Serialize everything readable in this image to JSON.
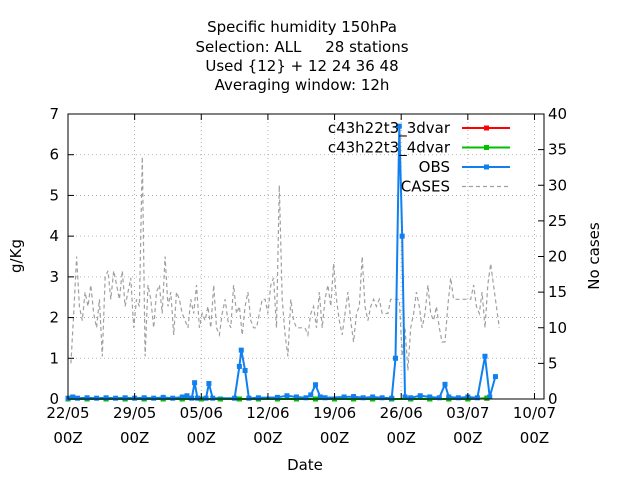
{
  "chart_data": {
    "type": "line",
    "title_lines": [
      "Specific humidity 150hPa",
      "Selection: ALL     28 stations",
      "Used {12} + 12 24 36 48",
      "Averaging window: 12h"
    ],
    "xlabel": "Date",
    "ylabel": "g/Kg",
    "y2label": "No cases",
    "xlim": [
      0,
      50
    ],
    "ylim": [
      0,
      7
    ],
    "y2lim": [
      0,
      40
    ],
    "yticks": [
      "0",
      "1",
      "2",
      "3",
      "4",
      "5",
      "6",
      "7"
    ],
    "y2ticks": [
      "0",
      "5",
      "10",
      "15",
      "20",
      "25",
      "30",
      "35",
      "40"
    ],
    "xticks": [
      {
        "day": 0,
        "date": "22/05",
        "hour": "00Z"
      },
      {
        "day": 7,
        "date": "29/05",
        "hour": "00Z"
      },
      {
        "day": 14,
        "date": "05/06",
        "hour": "00Z"
      },
      {
        "day": 21,
        "date": "12/06",
        "hour": "00Z"
      },
      {
        "day": 28,
        "date": "19/06",
        "hour": "00Z"
      },
      {
        "day": 35,
        "date": "26/06",
        "hour": "00Z"
      },
      {
        "day": 42,
        "date": "03/07",
        "hour": "00Z"
      },
      {
        "day": 49,
        "date": "10/07",
        "hour": "00Z"
      }
    ],
    "grid": true,
    "legend_position": "top-right",
    "series": [
      {
        "name": "c43h22t3_3dvar",
        "color": "#ff0000",
        "axis": "y1",
        "style": "line-points",
        "points": [
          [
            0,
            0
          ],
          [
            2,
            0
          ],
          [
            4,
            0
          ],
          [
            6,
            0
          ],
          [
            8,
            0
          ],
          [
            10,
            0
          ],
          [
            12,
            0
          ],
          [
            14,
            0
          ],
          [
            16,
            0
          ],
          [
            18,
            0
          ],
          [
            20,
            0
          ],
          [
            22,
            0
          ],
          [
            24,
            0
          ],
          [
            26,
            0
          ],
          [
            28,
            0
          ],
          [
            30,
            0
          ],
          [
            32,
            0
          ],
          [
            34,
            0
          ],
          [
            36,
            0
          ],
          [
            38,
            0
          ],
          [
            40,
            0
          ],
          [
            42,
            0
          ],
          [
            44,
            0.02
          ]
        ]
      },
      {
        "name": "c43h22t3_4dvar",
        "color": "#00c000",
        "axis": "y1",
        "style": "line-points",
        "points": [
          [
            0,
            0
          ],
          [
            2,
            0
          ],
          [
            4,
            0
          ],
          [
            6,
            0
          ],
          [
            8,
            0
          ],
          [
            10,
            0
          ],
          [
            12,
            0
          ],
          [
            14,
            0
          ],
          [
            16,
            0
          ],
          [
            18,
            0
          ],
          [
            20,
            0
          ],
          [
            22,
            0
          ],
          [
            24,
            0
          ],
          [
            26,
            0
          ],
          [
            28,
            0
          ],
          [
            30,
            0
          ],
          [
            32,
            0
          ],
          [
            34,
            0
          ],
          [
            36,
            0
          ],
          [
            38,
            0
          ],
          [
            40,
            0
          ],
          [
            42,
            0
          ],
          [
            44,
            0.02
          ]
        ]
      },
      {
        "name": "OBS",
        "color": "#1080f0",
        "axis": "y1",
        "style": "line-points",
        "points": [
          [
            0,
            0.02
          ],
          [
            0.5,
            0.05
          ],
          [
            1,
            0.02
          ],
          [
            2,
            0.03
          ],
          [
            3,
            0.02
          ],
          [
            4,
            0.03
          ],
          [
            5,
            0.02
          ],
          [
            6,
            0.03
          ],
          [
            7,
            0.02
          ],
          [
            8,
            0.03
          ],
          [
            9,
            0.02
          ],
          [
            10,
            0.04
          ],
          [
            11,
            0.02
          ],
          [
            12,
            0.05
          ],
          [
            12.5,
            0.08
          ],
          [
            13,
            0.02
          ],
          [
            13.3,
            0.4
          ],
          [
            13.6,
            0.02
          ],
          [
            14.5,
            0.02
          ],
          [
            14.8,
            0.38
          ],
          [
            15.2,
            0.02
          ],
          [
            17.5,
            0.02
          ],
          [
            18,
            0.8
          ],
          [
            18.2,
            1.2
          ],
          [
            18.6,
            0.7
          ],
          [
            19,
            0.02
          ],
          [
            20,
            0.03
          ],
          [
            22,
            0.04
          ],
          [
            23,
            0.08
          ],
          [
            24,
            0.05
          ],
          [
            25,
            0.03
          ],
          [
            25.5,
            0.1
          ],
          [
            26,
            0.35
          ],
          [
            26.5,
            0.05
          ],
          [
            27,
            0.03
          ],
          [
            29,
            0.05
          ],
          [
            30,
            0.06
          ],
          [
            31,
            0.03
          ],
          [
            32,
            0.05
          ],
          [
            33,
            0.03
          ],
          [
            34,
            0.02
          ],
          [
            34.4,
            1.0
          ],
          [
            34.8,
            6.7
          ],
          [
            35.1,
            4.0
          ],
          [
            35.4,
            0.05
          ],
          [
            36,
            0.03
          ],
          [
            37,
            0.08
          ],
          [
            38,
            0.05
          ],
          [
            39,
            0.03
          ],
          [
            39.6,
            0.36
          ],
          [
            40,
            0.05
          ],
          [
            41,
            0.03
          ],
          [
            42,
            0.05
          ],
          [
            43,
            0.03
          ],
          [
            43.8,
            1.05
          ],
          [
            44.3,
            0.05
          ],
          [
            44.9,
            0.55
          ]
        ]
      },
      {
        "name": "CASES",
        "color": "#a0a0a0",
        "axis": "y2",
        "style": "dashed",
        "points": [
          [
            0.3,
            5
          ],
          [
            0.6,
            12
          ],
          [
            0.9,
            20
          ],
          [
            1.2,
            13
          ],
          [
            1.5,
            11
          ],
          [
            1.8,
            15
          ],
          [
            2.1,
            13
          ],
          [
            2.4,
            16
          ],
          [
            2.7,
            12
          ],
          [
            3.0,
            10
          ],
          [
            3.3,
            14
          ],
          [
            3.6,
            6
          ],
          [
            3.9,
            17
          ],
          [
            4.2,
            18
          ],
          [
            4.5,
            14
          ],
          [
            4.8,
            18
          ],
          [
            5.1,
            16
          ],
          [
            5.4,
            14
          ],
          [
            5.7,
            18
          ],
          [
            6.0,
            13
          ],
          [
            6.3,
            15
          ],
          [
            6.6,
            17
          ],
          [
            6.9,
            10
          ],
          [
            7.2,
            14
          ],
          [
            7.5,
            13
          ],
          [
            7.8,
            34
          ],
          [
            8.1,
            6
          ],
          [
            8.4,
            16
          ],
          [
            8.7,
            14
          ],
          [
            9.0,
            10
          ],
          [
            9.3,
            15
          ],
          [
            9.6,
            16
          ],
          [
            9.9,
            12
          ],
          [
            10.2,
            20
          ],
          [
            10.5,
            13
          ],
          [
            10.8,
            15
          ],
          [
            11.1,
            9
          ],
          [
            11.4,
            15
          ],
          [
            11.7,
            14
          ],
          [
            12.0,
            12
          ],
          [
            12.3,
            11
          ],
          [
            12.6,
            10
          ],
          [
            12.9,
            14
          ],
          [
            13.2,
            12
          ],
          [
            13.5,
            16
          ],
          [
            13.8,
            10
          ],
          [
            14.1,
            12
          ],
          [
            14.4,
            11
          ],
          [
            14.7,
            13
          ],
          [
            15.0,
            10
          ],
          [
            15.3,
            16
          ],
          [
            15.6,
            10
          ],
          [
            15.9,
            9
          ],
          [
            16.2,
            12
          ],
          [
            16.5,
            14
          ],
          [
            16.8,
            11
          ],
          [
            17.1,
            10
          ],
          [
            17.4,
            16
          ],
          [
            17.7,
            12
          ],
          [
            18.0,
            13
          ],
          [
            18.3,
            9
          ],
          [
            18.6,
            13
          ],
          [
            18.9,
            15
          ],
          [
            19.2,
            11
          ],
          [
            19.5,
            10
          ],
          [
            19.8,
            10
          ],
          [
            20.1,
            12
          ],
          [
            20.4,
            14
          ],
          [
            20.7,
            14
          ],
          [
            21.0,
            12
          ],
          [
            21.3,
            16
          ],
          [
            21.6,
            17
          ],
          [
            21.9,
            10
          ],
          [
            22.2,
            30
          ],
          [
            22.5,
            14
          ],
          [
            22.8,
            9
          ],
          [
            23.1,
            6
          ],
          [
            23.4,
            14
          ],
          [
            23.7,
            11
          ],
          [
            24.0,
            10
          ],
          [
            24.3,
            10
          ],
          [
            24.6,
            10
          ],
          [
            24.9,
            10
          ],
          [
            25.2,
            9
          ],
          [
            25.5,
            12
          ],
          [
            25.8,
            13
          ],
          [
            26.1,
            10
          ],
          [
            26.4,
            15
          ],
          [
            26.7,
            10
          ],
          [
            27.0,
            14
          ],
          [
            27.3,
            16
          ],
          [
            27.6,
            13
          ],
          [
            27.9,
            19
          ],
          [
            28.2,
            14
          ],
          [
            28.5,
            11
          ],
          [
            28.8,
            9
          ],
          [
            29.1,
            12
          ],
          [
            29.4,
            15
          ],
          [
            29.7,
            11
          ],
          [
            30.0,
            8
          ],
          [
            30.3,
            12
          ],
          [
            30.6,
            13
          ],
          [
            30.9,
            20
          ],
          [
            31.2,
            13
          ],
          [
            31.5,
            11
          ],
          [
            31.8,
            13
          ],
          [
            32.1,
            14
          ],
          [
            32.4,
            13
          ],
          [
            32.7,
            14
          ],
          [
            33.0,
            12
          ],
          [
            33.3,
            12
          ],
          [
            33.6,
            12
          ],
          [
            33.9,
            14
          ],
          [
            34.2,
            14
          ],
          [
            34.5,
            14
          ],
          [
            34.8,
            14
          ],
          [
            35.1,
            6
          ],
          [
            35.4,
            10
          ],
          [
            35.7,
            4
          ],
          [
            36.0,
            10
          ],
          [
            36.3,
            12
          ],
          [
            36.6,
            15
          ],
          [
            36.9,
            13
          ],
          [
            37.2,
            10
          ],
          [
            37.5,
            12
          ],
          [
            37.8,
            16
          ],
          [
            38.1,
            12
          ],
          [
            38.4,
            11
          ],
          [
            38.7,
            13
          ],
          [
            39.0,
            10
          ],
          [
            39.3,
            8
          ],
          [
            39.6,
            8
          ],
          [
            39.9,
            13
          ],
          [
            40.2,
            17
          ],
          [
            40.5,
            14
          ],
          [
            40.8,
            14
          ],
          [
            41.1,
            14
          ],
          [
            41.4,
            14
          ],
          [
            41.7,
            14
          ],
          [
            42.0,
            14
          ],
          [
            42.3,
            14
          ],
          [
            42.6,
            16
          ],
          [
            42.9,
            13
          ],
          [
            43.2,
            12
          ],
          [
            43.5,
            15
          ],
          [
            43.8,
            10
          ],
          [
            44.1,
            16
          ],
          [
            44.4,
            19
          ],
          [
            44.7,
            16
          ],
          [
            45.0,
            13
          ],
          [
            45.3,
            10
          ]
        ]
      }
    ]
  }
}
